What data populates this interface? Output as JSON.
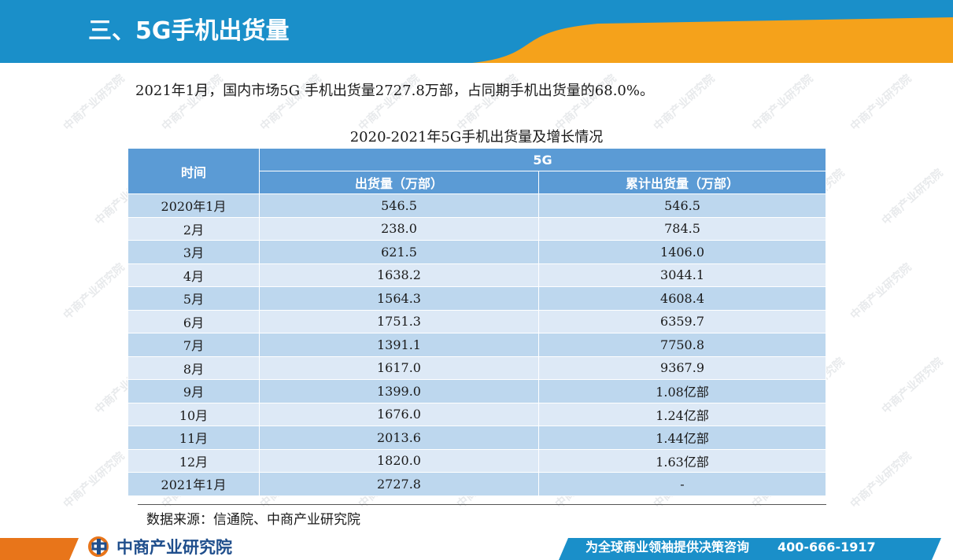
{
  "header": {
    "title": "三、5G手机出货量",
    "colors": {
      "blue": "#1a8fc9",
      "orange": "#f5a21b"
    }
  },
  "intro": "2021年1月，国内市场5G 手机出货量2727.8万部，占同期手机出货量的68.0%。",
  "watermark": "中商产业研究院",
  "table": {
    "caption": "2020-2021年5G手机出货量及增长情况",
    "header_time": "时间",
    "header_group": "5G",
    "col_shipment": "出货量（万部）",
    "col_cumulative": "累计出货量（万部）",
    "rows": [
      {
        "time": "2020年1月",
        "shipment": "546.5",
        "cumulative": "546.5"
      },
      {
        "time": "2月",
        "shipment": "238.0",
        "cumulative": "784.5"
      },
      {
        "time": "3月",
        "shipment": "621.5",
        "cumulative": "1406.0"
      },
      {
        "time": "4月",
        "shipment": "1638.2",
        "cumulative": "3044.1"
      },
      {
        "time": "5月",
        "shipment": "1564.3",
        "cumulative": "4608.4"
      },
      {
        "time": "6月",
        "shipment": "1751.3",
        "cumulative": "6359.7"
      },
      {
        "time": "7月",
        "shipment": "1391.1",
        "cumulative": "7750.8"
      },
      {
        "time": "8月",
        "shipment": "1617.0",
        "cumulative": "9367.9"
      },
      {
        "time": "9月",
        "shipment": "1399.0",
        "cumulative": "1.08亿部"
      },
      {
        "time": "10月",
        "shipment": "1676.0",
        "cumulative": "1.24亿部"
      },
      {
        "time": "11月",
        "shipment": "2013.6",
        "cumulative": "1.44亿部"
      },
      {
        "time": "12月",
        "shipment": "1820.0",
        "cumulative": "1.63亿部"
      },
      {
        "time": "2021年1月",
        "shipment": "2727.8",
        "cumulative": "-"
      }
    ]
  },
  "source": "数据来源：信通院、中商产业研究院",
  "footer": {
    "logo_text": "中商产业研究院",
    "logo_icon": "company-logo-icon",
    "slogan": "为全球商业领袖提供决策咨询",
    "phone": "400-666-1917"
  }
}
